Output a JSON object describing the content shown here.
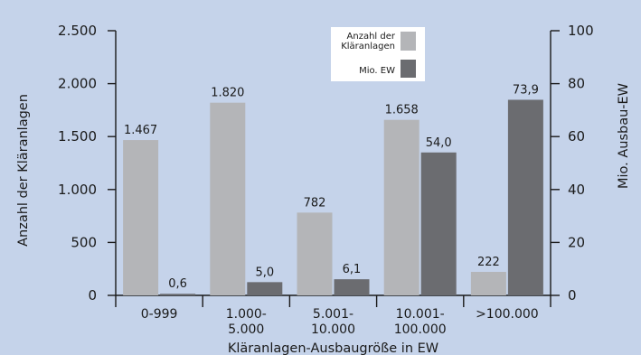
{
  "chart_data": {
    "type": "bar",
    "categories": [
      [
        "0-999"
      ],
      [
        "1.000-",
        "5.000"
      ],
      [
        "5.001-",
        "10.000"
      ],
      [
        "10.001-",
        "100.000"
      ],
      [
        ">100.000"
      ]
    ],
    "series": [
      {
        "name": "Anzahl der Kläranlagen",
        "axis": "left",
        "color": "#b4b5b8",
        "values": [
          1467,
          1820,
          782,
          1658,
          222
        ],
        "labels": [
          "1.467",
          "1.820",
          "782",
          "1.658",
          "222"
        ]
      },
      {
        "name": "Mio. EW",
        "axis": "right",
        "color": "#6b6c70",
        "values": [
          0.6,
          5.0,
          6.1,
          54.0,
          73.9
        ],
        "labels": [
          "0,6",
          "5,0",
          "6,1",
          "54,0",
          "73,9"
        ]
      }
    ],
    "legend": {
      "entries": [
        [
          "Anzahl der",
          "Kläranlagen"
        ],
        [
          "Mio. EW"
        ]
      ],
      "position": "top-right"
    },
    "xlabel": "Kläranlagen-Ausbaugröße in EW",
    "ylabel": "Anzahl der Kläranlagen",
    "y2label": "Mio. Ausbau-EW",
    "ylim": [
      0,
      2500
    ],
    "y2lim": [
      0,
      100
    ],
    "yticks": [
      0,
      500,
      1000,
      1500,
      2000,
      2500
    ],
    "yticklabels": [
      "0",
      "500",
      "1.000",
      "1.500",
      "2.000",
      "2.500"
    ],
    "y2ticks": [
      0,
      20,
      40,
      60,
      80,
      100
    ],
    "y2ticklabels": [
      "0",
      "20",
      "40",
      "60",
      "80",
      "100"
    ],
    "grid": false
  }
}
